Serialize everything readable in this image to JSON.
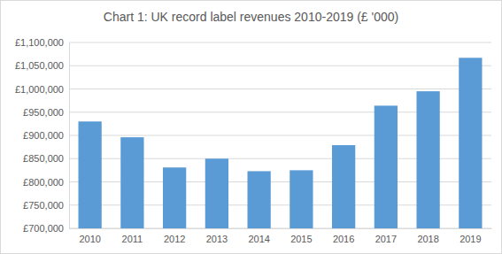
{
  "chart_data": {
    "type": "bar",
    "title": "Chart 1: UK record label revenues 2010-2019 (£ '000)",
    "categories": [
      "2010",
      "2011",
      "2012",
      "2013",
      "2014",
      "2015",
      "2016",
      "2017",
      "2018",
      "2019"
    ],
    "values": [
      930000,
      896000,
      831000,
      850000,
      823000,
      825000,
      879000,
      964000,
      995000,
      1067000
    ],
    "color": "#5b9bd5",
    "ylim": [
      700000,
      1100000
    ],
    "yticks": [
      {
        "value": 700000,
        "label": "£700,000"
      },
      {
        "value": 750000,
        "label": "£750,000"
      },
      {
        "value": 800000,
        "label": "£800,000"
      },
      {
        "value": 850000,
        "label": "£850,000"
      },
      {
        "value": 900000,
        "label": "£900,000"
      },
      {
        "value": 950000,
        "label": "£950,000"
      },
      {
        "value": 1000000,
        "label": "£1,000,000"
      },
      {
        "value": 1050000,
        "label": "£1,050,000"
      },
      {
        "value": 1100000,
        "label": "£1,100,000"
      }
    ],
    "grid": true
  }
}
